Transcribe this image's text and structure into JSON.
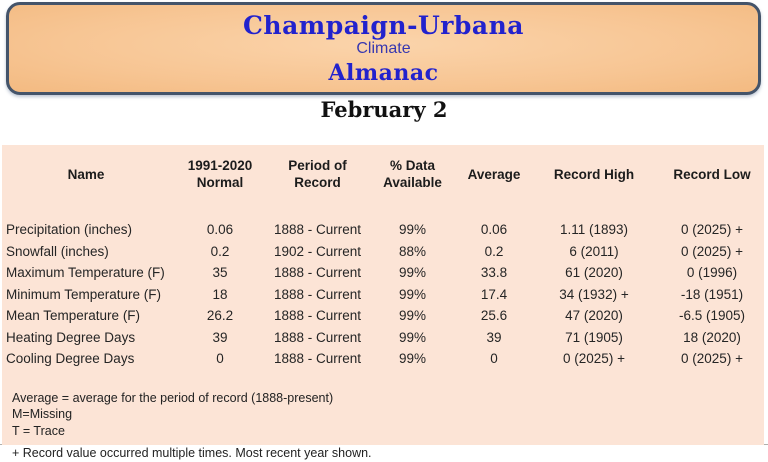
{
  "banner": {
    "title": "Champaign-Urbana",
    "subtitle": "Climate",
    "title2": "Almanac"
  },
  "date_title": "February 2",
  "table": {
    "columns": [
      "Name",
      "1991-2020\nNormal",
      "Period of\nRecord",
      "% Data\nAvailable",
      "Average",
      "Record High",
      "Record Low"
    ],
    "rows": [
      [
        "Precipitation (inches)",
        "0.06",
        "1888 - Current",
        "99%",
        "0.06",
        "1.11 (1893)",
        "0 (2025) +"
      ],
      [
        "Snowfall (inches)",
        "0.2",
        "1902 - Current",
        "88%",
        "0.2",
        "6 (2011)",
        "0 (2025) +"
      ],
      [
        "Maximum Temperature (F)",
        "35",
        "1888 - Current",
        "99%",
        "33.8",
        "61 (2020)",
        "0 (1996)"
      ],
      [
        "Minimum Temperature (F)",
        "18",
        "1888 - Current",
        "99%",
        "17.4",
        "34 (1932) +",
        "-18 (1951)"
      ],
      [
        "Mean Temperature (F)",
        "26.2",
        "1888 - Current",
        "99%",
        "25.6",
        "47 (2020)",
        "-6.5 (1905)"
      ],
      [
        "Heating Degree Days",
        "39",
        "1888 - Current",
        "99%",
        "39",
        "71 (1905)",
        "18 (2020)"
      ],
      [
        "Cooling Degree Days",
        "0",
        "1888 - Current",
        "99%",
        "0",
        "0 (2025) +",
        "0 (2025) +"
      ]
    ]
  },
  "footnotes": [
    "Average = average for the period of record (1888-present)",
    "M=Missing",
    "T = Trace",
    "+ Record value occurred multiple times. Most recent year shown."
  ],
  "colors": {
    "banner_border": "#44546a",
    "banner_fill": "#f7c593",
    "panel_fill": "#fce4d6",
    "title_blue": "#2222cd",
    "subtitle_blue": "#3838b0"
  }
}
